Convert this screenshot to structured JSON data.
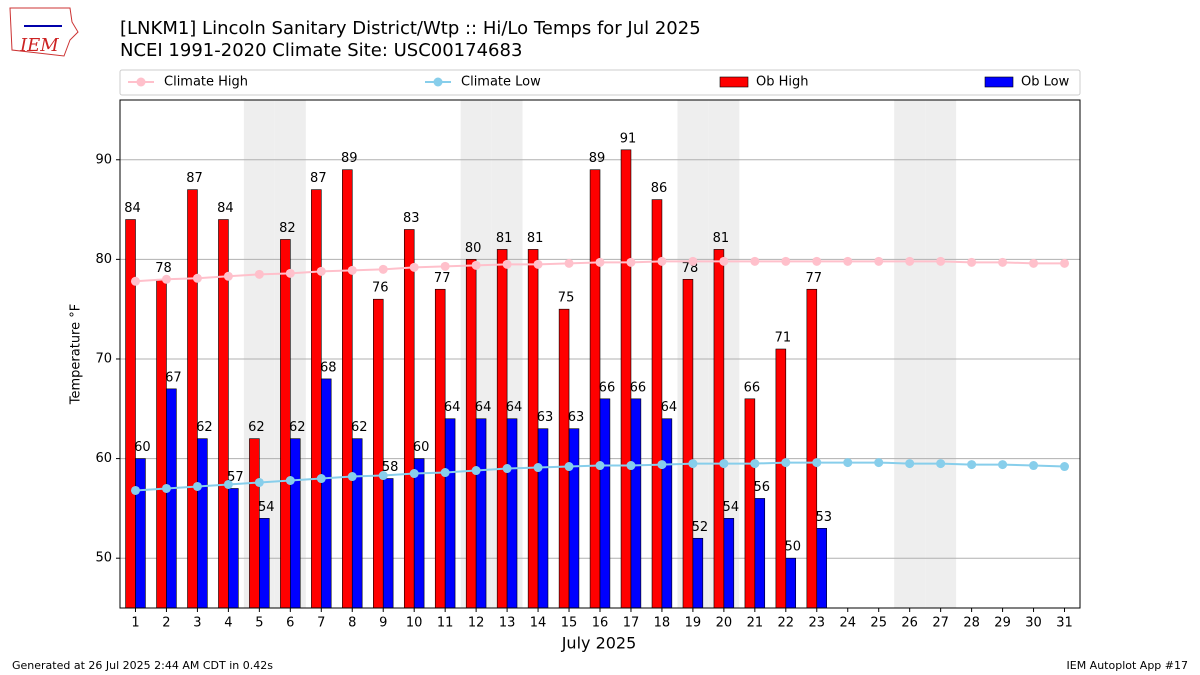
{
  "logo": "IEM",
  "footer": {
    "left": "Generated at 26 Jul 2025 2:44 AM CDT in 0.42s",
    "right": "IEM Autoplot App #17"
  },
  "chart_data": {
    "type": "bar",
    "title": "[LNKM1] Lincoln Sanitary District/Wtp :: Hi/Lo Temps for Jul 2025",
    "subtitle": "NCEI 1991-2020 Climate Site: USC00174683",
    "xlabel": "July 2025",
    "ylabel": "Temperature °F",
    "categories": [
      "1",
      "2",
      "3",
      "4",
      "5",
      "6",
      "7",
      "8",
      "9",
      "10",
      "11",
      "12",
      "13",
      "14",
      "15",
      "16",
      "17",
      "18",
      "19",
      "20",
      "21",
      "22",
      "23",
      "24",
      "25",
      "26",
      "27",
      "28",
      "29",
      "30",
      "31"
    ],
    "shaded_days": [
      "5",
      "6",
      "12",
      "13",
      "19",
      "20",
      "26",
      "27"
    ],
    "ylim": [
      45,
      96
    ],
    "yticks": [
      50,
      60,
      70,
      80,
      90
    ],
    "grid": true,
    "series": [
      {
        "name": "Climate High",
        "type": "line",
        "color": "#ffc0cb",
        "values": [
          77.8,
          78.0,
          78.1,
          78.3,
          78.5,
          78.6,
          78.8,
          78.9,
          79.0,
          79.2,
          79.3,
          79.4,
          79.5,
          79.5,
          79.6,
          79.7,
          79.7,
          79.8,
          79.8,
          79.8,
          79.8,
          79.8,
          79.8,
          79.8,
          79.8,
          79.8,
          79.8,
          79.7,
          79.7,
          79.6,
          79.6
        ]
      },
      {
        "name": "Climate Low",
        "type": "line",
        "color": "#87ceeb",
        "values": [
          56.8,
          57.0,
          57.2,
          57.4,
          57.6,
          57.8,
          58.0,
          58.2,
          58.3,
          58.5,
          58.6,
          58.8,
          59.0,
          59.1,
          59.2,
          59.3,
          59.3,
          59.4,
          59.5,
          59.5,
          59.5,
          59.6,
          59.6,
          59.6,
          59.6,
          59.5,
          59.5,
          59.4,
          59.4,
          59.3,
          59.2
        ]
      },
      {
        "name": "Ob High",
        "type": "bar",
        "color": "#ff0000",
        "values": [
          84,
          78,
          87,
          84,
          62,
          82,
          87,
          89,
          76,
          83,
          77,
          80,
          81,
          81,
          75,
          89,
          91,
          86,
          78,
          81,
          66,
          71,
          77,
          null,
          null,
          null,
          null,
          null,
          null,
          null,
          null
        ]
      },
      {
        "name": "Ob Low",
        "type": "bar",
        "color": "#0000ff",
        "values": [
          60,
          67,
          62,
          57,
          54,
          62,
          68,
          62,
          58,
          60,
          64,
          64,
          64,
          63,
          63,
          66,
          66,
          64,
          52,
          54,
          56,
          50,
          53,
          null,
          null,
          null,
          null,
          null,
          null,
          null,
          null
        ]
      }
    ]
  }
}
